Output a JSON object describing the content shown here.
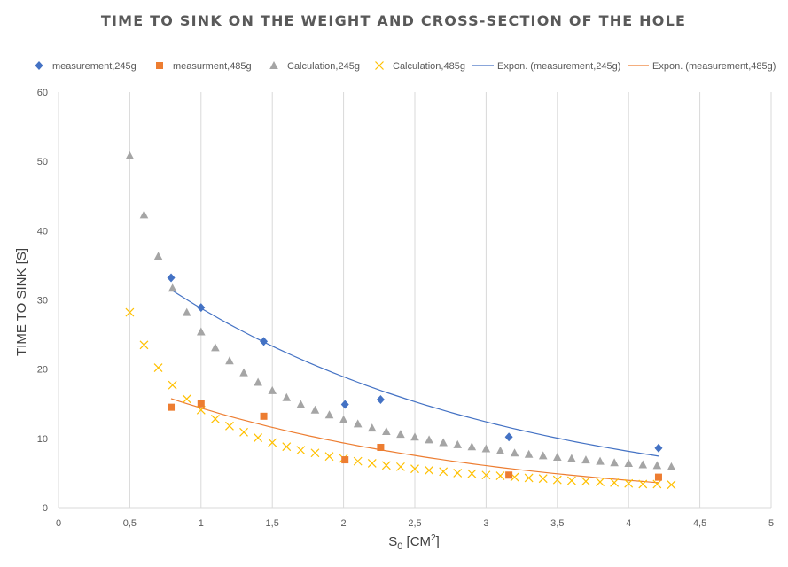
{
  "chart_data": {
    "type": "scatter",
    "title": "TIME TO SINK ON THE WEIGHT AND CROSS-SECTION OF THE HOLE",
    "xlabel": {
      "main": "S",
      "sub": "0",
      "rest_pre": " [CM",
      "sup": "2",
      "rest_post": "]"
    },
    "ylabel": "TIME TO SINK [S]",
    "xlim": [
      0,
      5
    ],
    "ylim": [
      0,
      60
    ],
    "x_ticks": [
      {
        "value": 0,
        "label": "0"
      },
      {
        "value": 0.5,
        "label": "0,5"
      },
      {
        "value": 1,
        "label": "1"
      },
      {
        "value": 1.5,
        "label": "1,5"
      },
      {
        "value": 2,
        "label": "2"
      },
      {
        "value": 2.5,
        "label": "2,5"
      },
      {
        "value": 3,
        "label": "3"
      },
      {
        "value": 3.5,
        "label": "3,5"
      },
      {
        "value": 4,
        "label": "4"
      },
      {
        "value": 4.5,
        "label": "4,5"
      },
      {
        "value": 5,
        "label": "5"
      }
    ],
    "y_ticks": [
      {
        "value": 0,
        "label": "0"
      },
      {
        "value": 10,
        "label": "10"
      },
      {
        "value": 20,
        "label": "20"
      },
      {
        "value": 30,
        "label": "30"
      },
      {
        "value": 40,
        "label": "40"
      },
      {
        "value": 50,
        "label": "50"
      },
      {
        "value": 60,
        "label": "60"
      }
    ],
    "grid": "vertical",
    "legend_position": "top",
    "series": [
      {
        "name": "measurement,245g",
        "marker": "diamond",
        "color": "#4472C4",
        "x": [
          0.79,
          1.0,
          1.44,
          2.01,
          2.26,
          3.16,
          4.21
        ],
        "y": [
          33.2,
          28.9,
          24.0,
          14.9,
          15.6,
          10.2,
          8.6
        ]
      },
      {
        "name": "measurment,485g",
        "marker": "square",
        "color": "#ED7D31",
        "x": [
          0.79,
          1.0,
          1.44,
          2.01,
          2.26,
          3.16,
          4.21
        ],
        "y": [
          14.5,
          15.0,
          13.2,
          6.9,
          8.7,
          4.7,
          4.4
        ]
      },
      {
        "name": "Calculation,245g",
        "marker": "triangle",
        "color": "#A5A5A5",
        "x": [
          0.5,
          0.6,
          0.7,
          0.8,
          0.9,
          1.0,
          1.1,
          1.2,
          1.3,
          1.4,
          1.5,
          1.6,
          1.7,
          1.8,
          1.9,
          2.0,
          2.1,
          2.2,
          2.3,
          2.4,
          2.5,
          2.6,
          2.7,
          2.8,
          2.9,
          3.0,
          3.1,
          3.2,
          3.3,
          3.4,
          3.5,
          3.6,
          3.7,
          3.8,
          3.9,
          4.0,
          4.1,
          4.2,
          4.3
        ],
        "y": [
          50.8,
          42.3,
          36.3,
          31.7,
          28.2,
          25.4,
          23.1,
          21.2,
          19.5,
          18.1,
          16.9,
          15.9,
          14.9,
          14.1,
          13.4,
          12.7,
          12.1,
          11.5,
          11.0,
          10.6,
          10.2,
          9.8,
          9.4,
          9.1,
          8.8,
          8.5,
          8.2,
          7.9,
          7.7,
          7.5,
          7.3,
          7.1,
          6.9,
          6.7,
          6.5,
          6.4,
          6.2,
          6.1,
          5.9
        ]
      },
      {
        "name": "Calculation,485g",
        "marker": "x",
        "color": "#FFC000",
        "x": [
          0.5,
          0.6,
          0.7,
          0.8,
          0.9,
          1.0,
          1.1,
          1.2,
          1.3,
          1.4,
          1.5,
          1.6,
          1.7,
          1.8,
          1.9,
          2.0,
          2.1,
          2.2,
          2.3,
          2.4,
          2.5,
          2.6,
          2.7,
          2.8,
          2.9,
          3.0,
          3.1,
          3.2,
          3.3,
          3.4,
          3.5,
          3.6,
          3.7,
          3.8,
          3.9,
          4.0,
          4.1,
          4.2,
          4.3
        ],
        "y": [
          28.2,
          23.5,
          20.2,
          17.7,
          15.7,
          14.1,
          12.8,
          11.8,
          10.9,
          10.1,
          9.4,
          8.8,
          8.3,
          7.9,
          7.4,
          7.1,
          6.7,
          6.4,
          6.1,
          5.9,
          5.6,
          5.4,
          5.2,
          5.0,
          4.9,
          4.7,
          4.6,
          4.4,
          4.3,
          4.2,
          4.0,
          3.9,
          3.8,
          3.7,
          3.6,
          3.5,
          3.4,
          3.4,
          3.3
        ]
      }
    ],
    "trendlines": [
      {
        "name": "Expon. (measurement,245g)",
        "color": "#4472C4",
        "type": "exponential",
        "a": 43.9,
        "b": -0.4217,
        "x_range": [
          0.79,
          4.21
        ]
      },
      {
        "name": "Expon. (measurement,485g)",
        "color": "#ED7D31",
        "type": "exponential",
        "a": 22.15,
        "b": -0.4316,
        "x_range": [
          0.79,
          4.21
        ]
      }
    ]
  }
}
